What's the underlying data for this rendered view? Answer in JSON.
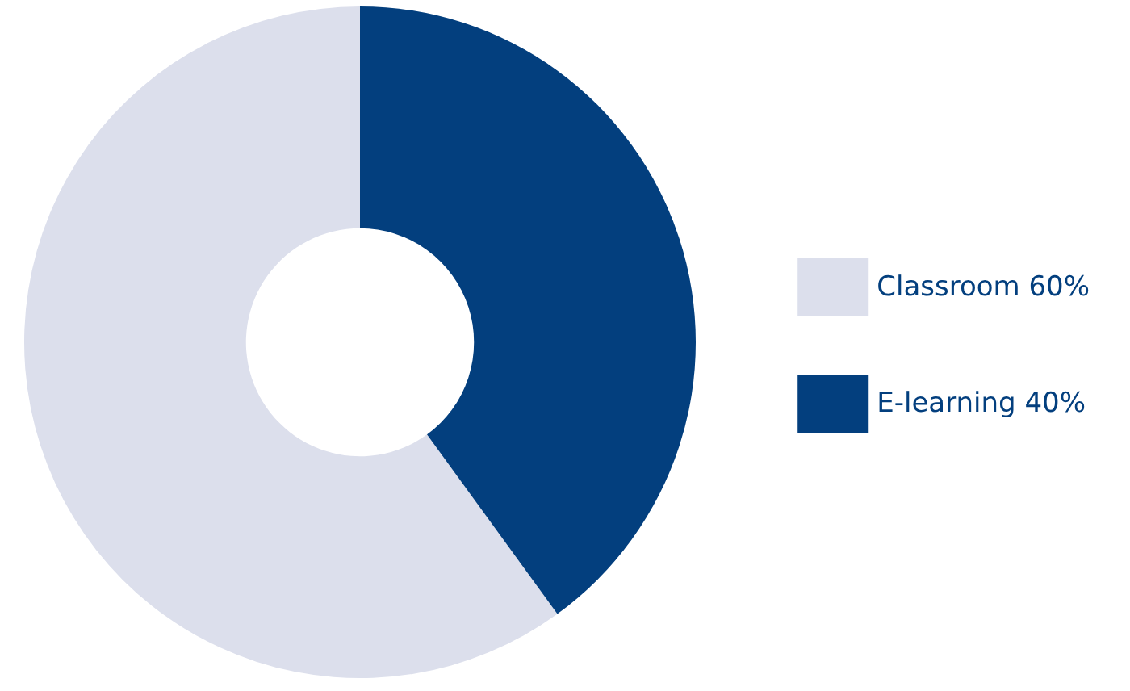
{
  "chart_data": {
    "type": "donut",
    "categories": [
      "Classroom 60%",
      "E-learning 40%"
    ],
    "values": [
      60,
      40
    ],
    "colors": [
      "#dcdfec",
      "#033f7e"
    ],
    "legend": "right"
  }
}
